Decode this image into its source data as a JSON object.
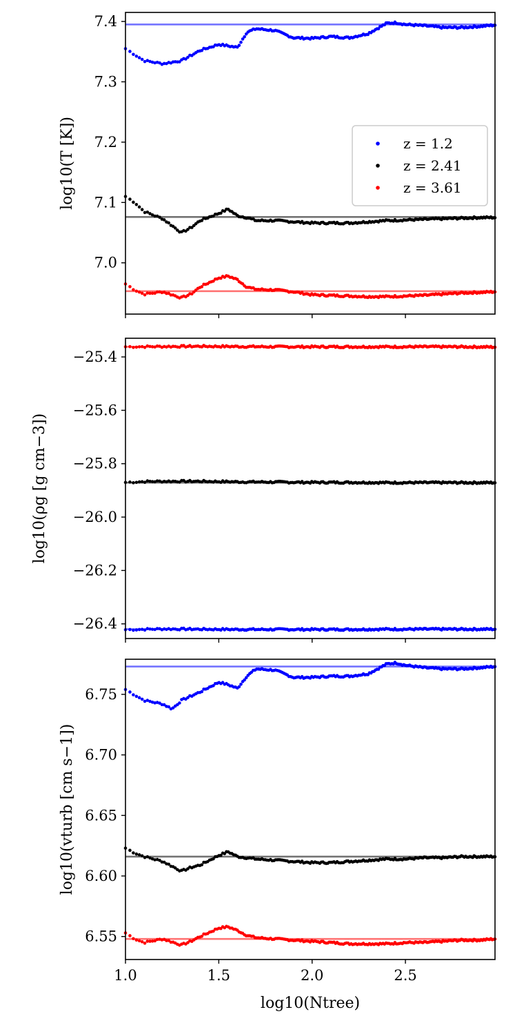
{
  "chart_data": [
    {
      "type": "scatter",
      "ylabel": "log10(T [K])",
      "ylim": [
        6.915,
        7.415
      ],
      "yticks": [
        "7.0",
        "7.1",
        "7.2",
        "7.3",
        "7.4"
      ],
      "xlim": [
        1.0,
        2.98
      ],
      "legend": {
        "placement": "right",
        "entries": [
          "z =  1.2",
          "z =  2.41",
          "z =  3.61"
        ]
      },
      "series": [
        {
          "name": "z =  1.2",
          "color": "#0000ff",
          "reference": 7.395,
          "points": [
            [
              1.0,
              7.355
            ],
            [
              1.1,
              7.335
            ],
            [
              1.2,
              7.33
            ],
            [
              1.3,
              7.335
            ],
            [
              1.4,
              7.352
            ],
            [
              1.5,
              7.362
            ],
            [
              1.6,
              7.357
            ],
            [
              1.65,
              7.382
            ],
            [
              1.7,
              7.388
            ],
            [
              1.8,
              7.385
            ],
            [
              1.9,
              7.373
            ],
            [
              2.0,
              7.372
            ],
            [
              2.1,
              7.375
            ],
            [
              2.2,
              7.373
            ],
            [
              2.3,
              7.38
            ],
            [
              2.4,
              7.397
            ],
            [
              2.45,
              7.398
            ],
            [
              2.5,
              7.395
            ],
            [
              2.6,
              7.393
            ],
            [
              2.7,
              7.39
            ],
            [
              2.8,
              7.39
            ],
            [
              2.9,
              7.392
            ],
            [
              2.98,
              7.394
            ]
          ]
        },
        {
          "name": "z =  2.41",
          "color": "#000000",
          "reference": 7.076,
          "points": [
            [
              1.0,
              7.11
            ],
            [
              1.05,
              7.1
            ],
            [
              1.1,
              7.085
            ],
            [
              1.2,
              7.073
            ],
            [
              1.3,
              7.05
            ],
            [
              1.35,
              7.058
            ],
            [
              1.4,
              7.07
            ],
            [
              1.5,
              7.082
            ],
            [
              1.55,
              7.089
            ],
            [
              1.6,
              7.078
            ],
            [
              1.65,
              7.075
            ],
            [
              1.7,
              7.07
            ],
            [
              1.8,
              7.07
            ],
            [
              1.9,
              7.068
            ],
            [
              2.0,
              7.066
            ],
            [
              2.1,
              7.066
            ],
            [
              2.2,
              7.066
            ],
            [
              2.3,
              7.068
            ],
            [
              2.4,
              7.07
            ],
            [
              2.5,
              7.071
            ],
            [
              2.6,
              7.072
            ],
            [
              2.7,
              7.073
            ],
            [
              2.8,
              7.074
            ],
            [
              2.9,
              7.075
            ],
            [
              2.98,
              7.075
            ]
          ]
        },
        {
          "name": "z =  3.61",
          "color": "#ff0000",
          "reference": 6.953,
          "points": [
            [
              1.0,
              6.965
            ],
            [
              1.05,
              6.955
            ],
            [
              1.1,
              6.948
            ],
            [
              1.2,
              6.952
            ],
            [
              1.3,
              6.942
            ],
            [
              1.35,
              6.948
            ],
            [
              1.4,
              6.96
            ],
            [
              1.5,
              6.975
            ],
            [
              1.55,
              6.978
            ],
            [
              1.6,
              6.972
            ],
            [
              1.65,
              6.96
            ],
            [
              1.7,
              6.956
            ],
            [
              1.8,
              6.955
            ],
            [
              1.9,
              6.952
            ],
            [
              2.0,
              6.947
            ],
            [
              2.1,
              6.946
            ],
            [
              2.2,
              6.945
            ],
            [
              2.3,
              6.944
            ],
            [
              2.4,
              6.944
            ],
            [
              2.5,
              6.945
            ],
            [
              2.6,
              6.946
            ],
            [
              2.7,
              6.948
            ],
            [
              2.8,
              6.95
            ],
            [
              2.9,
              6.951
            ],
            [
              2.98,
              6.952
            ]
          ]
        }
      ]
    },
    {
      "type": "scatter",
      "ylabel": "log10(ρg [g cm−3])",
      "ylim": [
        -26.455,
        -25.33
      ],
      "yticks": [
        "−26.4",
        "−26.2",
        "−26.0",
        "−25.8",
        "−25.6",
        "−25.4"
      ],
      "xlim": [
        1.0,
        2.98
      ],
      "series": [
        {
          "name": "z =  3.61",
          "color": "#ff0000",
          "reference": -25.362,
          "points": [
            [
              1.0,
              -25.362
            ],
            [
              1.2,
              -25.361
            ],
            [
              1.4,
              -25.36
            ],
            [
              1.6,
              -25.361
            ],
            [
              1.8,
              -25.362
            ],
            [
              2.0,
              -25.362
            ],
            [
              2.2,
              -25.362
            ],
            [
              2.4,
              -25.362
            ],
            [
              2.6,
              -25.362
            ],
            [
              2.8,
              -25.362
            ],
            [
              2.98,
              -25.363
            ]
          ]
        },
        {
          "name": "z =  2.41",
          "color": "#000000",
          "reference": -25.871,
          "points": [
            [
              1.0,
              -25.87
            ],
            [
              1.1,
              -25.867
            ],
            [
              1.2,
              -25.866
            ],
            [
              1.3,
              -25.866
            ],
            [
              1.4,
              -25.866
            ],
            [
              1.5,
              -25.867
            ],
            [
              1.6,
              -25.868
            ],
            [
              1.8,
              -25.869
            ],
            [
              2.0,
              -25.87
            ],
            [
              2.2,
              -25.87
            ],
            [
              2.4,
              -25.871
            ],
            [
              2.6,
              -25.871
            ],
            [
              2.8,
              -25.871
            ],
            [
              2.98,
              -25.871
            ]
          ]
        },
        {
          "name": "z =  1.2",
          "color": "#0000ff",
          "reference": -26.42,
          "points": [
            [
              1.0,
              -26.422
            ],
            [
              1.2,
              -26.419
            ],
            [
              1.4,
              -26.42
            ],
            [
              1.6,
              -26.421
            ],
            [
              1.8,
              -26.421
            ],
            [
              2.0,
              -26.421
            ],
            [
              2.2,
              -26.421
            ],
            [
              2.4,
              -26.42
            ],
            [
              2.6,
              -26.42
            ],
            [
              2.8,
              -26.42
            ],
            [
              2.98,
              -26.42
            ]
          ]
        }
      ]
    },
    {
      "type": "scatter",
      "ylabel": "log10(vturb [cm s−1])",
      "ylim": [
        6.531,
        6.779
      ],
      "yticks": [
        "6.55",
        "6.60",
        "6.65",
        "6.70",
        "6.75"
      ],
      "xlim": [
        1.0,
        2.98
      ],
      "xlabel": "log10(Ntree)",
      "xticks": [
        "1.0",
        "1.5",
        "2.0",
        "2.5"
      ],
      "series": [
        {
          "name": "z =  1.2",
          "color": "#0000ff",
          "reference": 6.773,
          "points": [
            [
              1.0,
              6.754
            ],
            [
              1.1,
              6.745
            ],
            [
              1.2,
              6.742
            ],
            [
              1.25,
              6.738
            ],
            [
              1.3,
              6.745
            ],
            [
              1.4,
              6.752
            ],
            [
              1.5,
              6.76
            ],
            [
              1.55,
              6.758
            ],
            [
              1.6,
              6.755
            ],
            [
              1.65,
              6.765
            ],
            [
              1.7,
              6.771
            ],
            [
              1.8,
              6.77
            ],
            [
              1.9,
              6.764
            ],
            [
              2.0,
              6.764
            ],
            [
              2.1,
              6.765
            ],
            [
              2.2,
              6.765
            ],
            [
              2.3,
              6.767
            ],
            [
              2.4,
              6.775
            ],
            [
              2.45,
              6.776
            ],
            [
              2.5,
              6.774
            ],
            [
              2.6,
              6.772
            ],
            [
              2.7,
              6.771
            ],
            [
              2.8,
              6.771
            ],
            [
              2.9,
              6.772
            ],
            [
              2.98,
              6.773
            ]
          ]
        },
        {
          "name": "z =  2.41",
          "color": "#000000",
          "reference": 6.616,
          "points": [
            [
              1.0,
              6.623
            ],
            [
              1.05,
              6.619
            ],
            [
              1.1,
              6.616
            ],
            [
              1.2,
              6.612
            ],
            [
              1.3,
              6.604
            ],
            [
              1.35,
              6.607
            ],
            [
              1.4,
              6.609
            ],
            [
              1.5,
              6.617
            ],
            [
              1.55,
              6.62
            ],
            [
              1.6,
              6.616
            ],
            [
              1.7,
              6.614
            ],
            [
              1.8,
              6.613
            ],
            [
              1.9,
              6.612
            ],
            [
              2.0,
              6.611
            ],
            [
              2.1,
              6.611
            ],
            [
              2.2,
              6.612
            ],
            [
              2.3,
              6.613
            ],
            [
              2.4,
              6.614
            ],
            [
              2.5,
              6.614
            ],
            [
              2.6,
              6.615
            ],
            [
              2.7,
              6.615
            ],
            [
              2.8,
              6.616
            ],
            [
              2.9,
              6.616
            ],
            [
              2.98,
              6.616
            ]
          ]
        },
        {
          "name": "z =  3.61",
          "color": "#ff0000",
          "reference": 6.548,
          "points": [
            [
              1.0,
              6.553
            ],
            [
              1.05,
              6.548
            ],
            [
              1.1,
              6.545
            ],
            [
              1.2,
              6.548
            ],
            [
              1.3,
              6.543
            ],
            [
              1.35,
              6.546
            ],
            [
              1.4,
              6.55
            ],
            [
              1.5,
              6.557
            ],
            [
              1.55,
              6.558
            ],
            [
              1.6,
              6.555
            ],
            [
              1.65,
              6.551
            ],
            [
              1.7,
              6.549
            ],
            [
              1.8,
              6.548
            ],
            [
              1.9,
              6.547
            ],
            [
              2.0,
              6.546
            ],
            [
              2.1,
              6.545
            ],
            [
              2.2,
              6.544
            ],
            [
              2.3,
              6.544
            ],
            [
              2.4,
              6.544
            ],
            [
              2.5,
              6.545
            ],
            [
              2.6,
              6.545
            ],
            [
              2.7,
              6.546
            ],
            [
              2.8,
              6.547
            ],
            [
              2.9,
              6.547
            ],
            [
              2.98,
              6.548
            ]
          ]
        }
      ]
    }
  ]
}
